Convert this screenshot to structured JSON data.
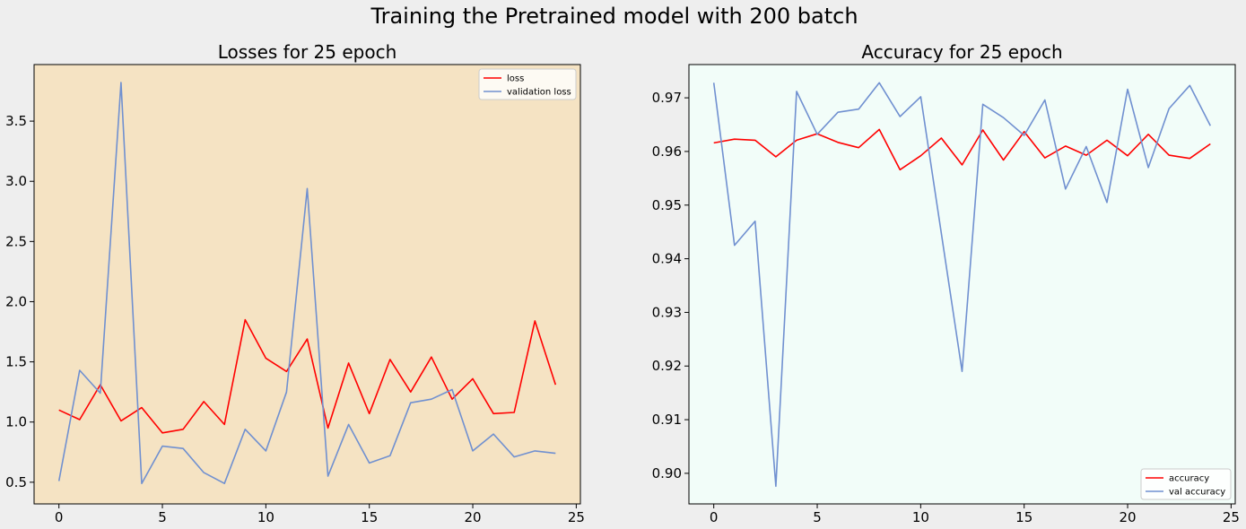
{
  "suptitle": "Training the Pretrained model with 200 batch",
  "chart_data": [
    {
      "type": "line",
      "title": "Losses for 25 epoch",
      "xlabel": "",
      "ylabel": "",
      "background": "#f5e3c3",
      "xlim": [
        -1.2,
        25.2
      ],
      "ylim": [
        0.32,
        3.97
      ],
      "xticks": [
        0,
        5,
        10,
        15,
        20,
        25
      ],
      "yticks": [
        0.5,
        1.0,
        1.5,
        2.0,
        2.5,
        3.0,
        3.5
      ],
      "ytick_labels": [
        "0.5",
        "1.0",
        "1.5",
        "2.0",
        "2.5",
        "3.0",
        "3.5"
      ],
      "legend_position": "upper right",
      "x": [
        0,
        1,
        2,
        3,
        4,
        5,
        6,
        7,
        8,
        9,
        10,
        11,
        12,
        13,
        14,
        15,
        16,
        17,
        18,
        19,
        20,
        21,
        22,
        23,
        24
      ],
      "series": [
        {
          "name": "loss",
          "color": "#ff0000",
          "values": [
            1.1,
            1.02,
            1.31,
            1.01,
            1.12,
            0.91,
            0.94,
            1.17,
            0.98,
            1.85,
            1.53,
            1.42,
            1.69,
            0.95,
            1.49,
            1.07,
            1.52,
            1.25,
            1.54,
            1.19,
            1.36,
            1.07,
            1.08,
            1.84,
            1.31
          ]
        },
        {
          "name": "validation loss",
          "color": "#7090d0",
          "values": [
            0.51,
            1.43,
            1.24,
            3.82,
            0.49,
            0.8,
            0.78,
            0.58,
            0.49,
            0.94,
            0.76,
            1.25,
            2.94,
            0.55,
            0.98,
            0.66,
            0.72,
            1.16,
            1.19,
            1.27,
            0.76,
            0.9,
            0.71,
            0.76,
            0.74
          ]
        }
      ]
    },
    {
      "type": "line",
      "title": "Accuracy for 25 epoch",
      "xlabel": "",
      "ylabel": "",
      "background": "#f2fdf9",
      "xlim": [
        -1.2,
        25.2
      ],
      "ylim": [
        0.8943,
        0.9762
      ],
      "xticks": [
        0,
        5,
        10,
        15,
        20,
        25
      ],
      "yticks": [
        0.9,
        0.91,
        0.92,
        0.93,
        0.94,
        0.95,
        0.96,
        0.97
      ],
      "ytick_labels": [
        "0.90",
        "0.91",
        "0.92",
        "0.93",
        "0.94",
        "0.95",
        "0.96",
        "0.97"
      ],
      "legend_position": "lower right",
      "x": [
        0,
        1,
        2,
        3,
        4,
        5,
        6,
        7,
        8,
        9,
        10,
        11,
        12,
        13,
        14,
        15,
        16,
        17,
        18,
        19,
        20,
        21,
        22,
        23,
        24
      ],
      "series": [
        {
          "name": "accuracy",
          "color": "#ff0000",
          "values": [
            0.9616,
            0.9623,
            0.9621,
            0.959,
            0.9621,
            0.9633,
            0.9617,
            0.9607,
            0.9641,
            0.9566,
            0.9592,
            0.9625,
            0.9575,
            0.964,
            0.9584,
            0.9637,
            0.9588,
            0.961,
            0.9593,
            0.9621,
            0.9592,
            0.9632,
            0.9593,
            0.9587,
            0.9614
          ]
        },
        {
          "name": "val accuracy",
          "color": "#7090d0",
          "values": [
            0.9728,
            0.9425,
            0.947,
            0.8976,
            0.9712,
            0.9632,
            0.9673,
            0.9679,
            0.9728,
            0.9665,
            0.9702,
            0.9447,
            0.919,
            0.9688,
            0.9663,
            0.963,
            0.9696,
            0.953,
            0.9609,
            0.9505,
            0.9716,
            0.957,
            0.968,
            0.9723,
            0.9648
          ]
        }
      ]
    }
  ]
}
